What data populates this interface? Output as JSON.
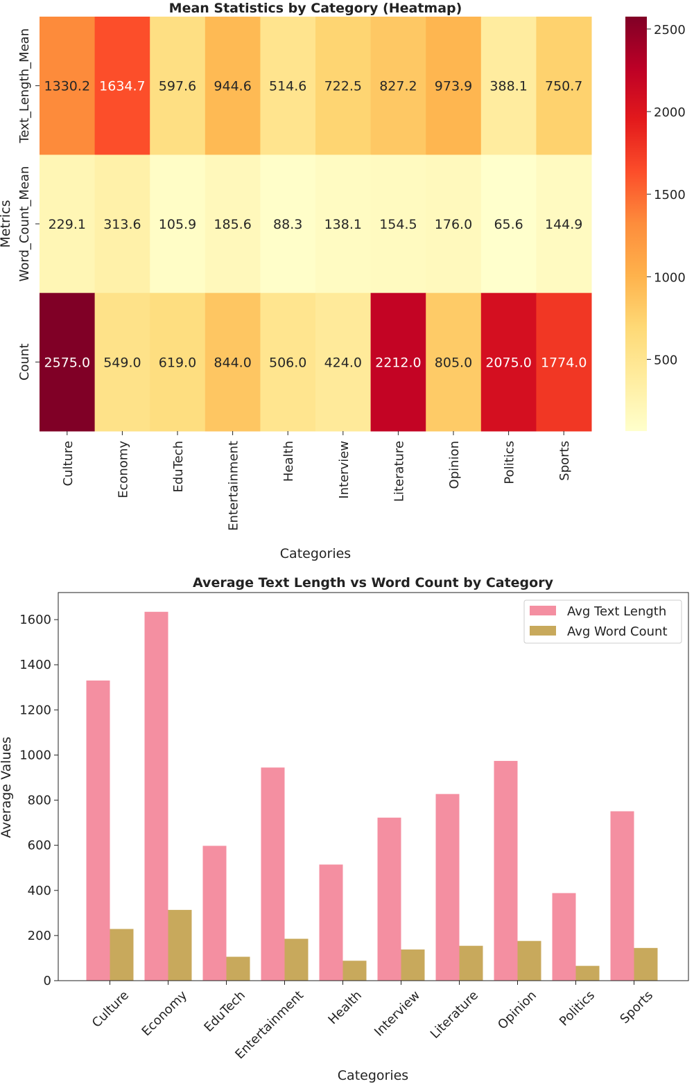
{
  "chart_data": [
    {
      "type": "heatmap",
      "title": "Mean Statistics by Category (Heatmap)",
      "xlabel": "Categories",
      "ylabel": "Metrics",
      "categories": [
        "Culture",
        "Economy",
        "EduTech",
        "Entertainment",
        "Health",
        "Interview",
        "Literature",
        "Opinion",
        "Politics",
        "Sports"
      ],
      "rows": [
        "Text_Length_Mean",
        "Word_Count_Mean",
        "Count"
      ],
      "values": [
        [
          1330.2,
          1634.7,
          597.6,
          944.6,
          514.6,
          722.5,
          827.2,
          973.9,
          388.1,
          750.7
        ],
        [
          229.1,
          313.6,
          105.9,
          185.6,
          88.3,
          138.1,
          154.5,
          176.0,
          65.6,
          144.9
        ],
        [
          2575.0,
          549.0,
          619.0,
          844.0,
          506.0,
          424.0,
          2212.0,
          805.0,
          2075.0,
          1774.0
        ]
      ],
      "colorbar": {
        "colormap": "YlOrRd",
        "vmin": 65.6,
        "vmax": 2575.0,
        "ticks": [
          500,
          1000,
          1500,
          2000,
          2500
        ]
      }
    },
    {
      "type": "bar",
      "title": "Average Text Length vs Word Count by Category",
      "xlabel": "Categories",
      "ylabel": "Average Values",
      "categories": [
        "Culture",
        "Economy",
        "EduTech",
        "Entertainment",
        "Health",
        "Interview",
        "Literature",
        "Opinion",
        "Politics",
        "Sports"
      ],
      "series": [
        {
          "name": "Avg Text Length",
          "color": "#f48fa1",
          "values": [
            1330.2,
            1634.7,
            597.6,
            944.6,
            514.6,
            722.5,
            827.2,
            973.9,
            388.1,
            750.7
          ]
        },
        {
          "name": "Avg Word Count",
          "color": "#c8a95c",
          "values": [
            229.1,
            313.6,
            105.9,
            185.6,
            88.3,
            138.1,
            154.5,
            176.0,
            65.6,
            144.9
          ]
        }
      ],
      "ylim": [
        0,
        1720
      ],
      "yticks": [
        0,
        200,
        400,
        600,
        800,
        1000,
        1200,
        1400,
        1600
      ],
      "legend": "top-right"
    }
  ]
}
